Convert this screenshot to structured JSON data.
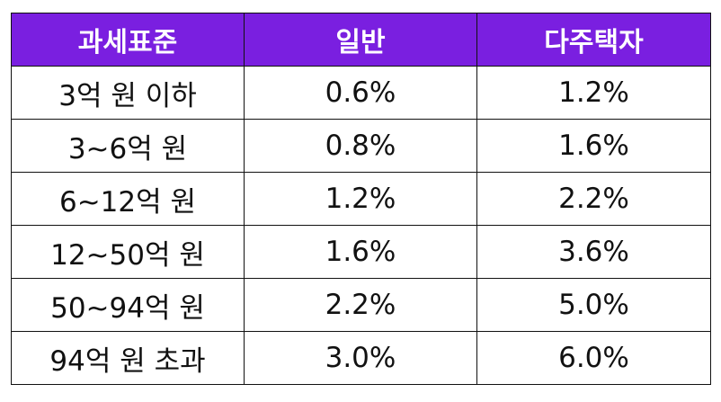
{
  "table": {
    "headers": [
      "과세표준",
      "일반",
      "다주택자"
    ],
    "rows": [
      [
        "3억 원 이하",
        "0.6%",
        "1.2%"
      ],
      [
        "3~6억 원",
        "0.8%",
        "1.6%"
      ],
      [
        "6~12억 원",
        "1.2%",
        "2.2%"
      ],
      [
        "12~50억 원",
        "1.6%",
        "3.6%"
      ],
      [
        "50~94억 원",
        "2.2%",
        "5.0%"
      ],
      [
        "94억 원 초과",
        "3.0%",
        "6.0%"
      ]
    ]
  },
  "colors": {
    "header_bg": "#7a1fe0",
    "header_text": "#ffffff",
    "border": "#111111",
    "body_text": "#111111"
  }
}
